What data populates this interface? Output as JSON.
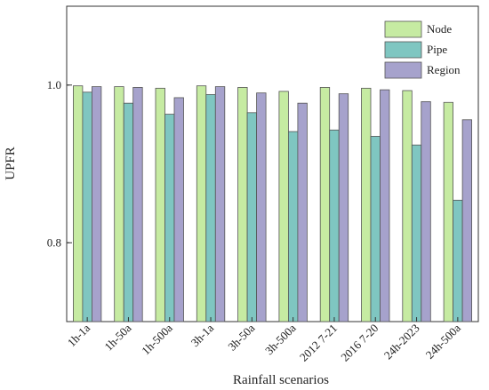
{
  "chart_data": {
    "type": "bar",
    "xlabel": "Rainfall scenarios",
    "ylabel": "UPFR",
    "ylim": [
      0.7,
      1.1
    ],
    "yticks": [
      "0.8",
      "1.0"
    ],
    "categories": [
      "1h-1a",
      "1h-50a",
      "1h-500a",
      "3h-1a",
      "3h-50a",
      "3h-500a",
      "2012 7-21",
      "2016 7-20",
      "24h-2023",
      "24h-500a"
    ],
    "series": [
      {
        "name": "Node",
        "color": "#c6eba2",
        "values": [
          0.999,
          0.998,
          0.996,
          0.999,
          0.997,
          0.992,
          0.997,
          0.996,
          0.993,
          0.978
        ]
      },
      {
        "name": "Pipe",
        "color": "#7fc6c1",
        "values": [
          0.991,
          0.977,
          0.963,
          0.988,
          0.965,
          0.941,
          0.943,
          0.935,
          0.924,
          0.854
        ]
      },
      {
        "name": "Region",
        "color": "#a6a2cc",
        "values": [
          0.998,
          0.997,
          0.984,
          0.998,
          0.99,
          0.977,
          0.989,
          0.994,
          0.979,
          0.956
        ]
      }
    ],
    "legend_position": "top-right",
    "grid": false
  }
}
